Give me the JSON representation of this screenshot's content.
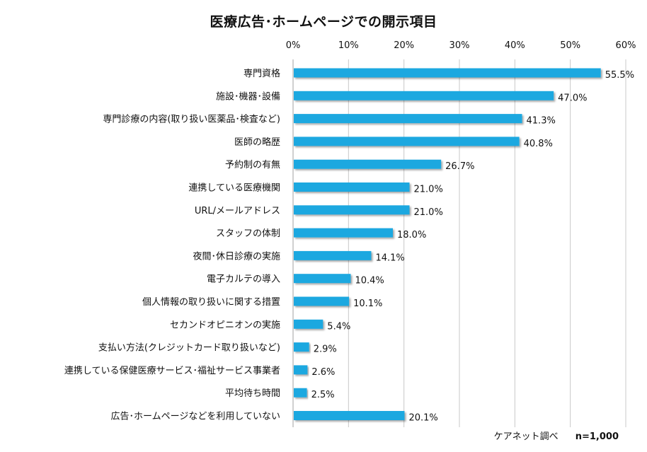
{
  "chart_data": {
    "type": "bar",
    "orientation": "horizontal",
    "title": "医療広告･ホームページでの開示項目",
    "categories": [
      "専門資格",
      "施設･機器･設備",
      "専門診療の内容(取り扱い医薬品･検査など)",
      "医師の略歴",
      "予約制の有無",
      "連携している医療機関",
      "URL/メールアドレス",
      "スタッフの体制",
      "夜間･休日診療の実施",
      "電子カルテの導入",
      "個人情報の取り扱いに関する措置",
      "セカンドオピニオンの実施",
      "支払い方法(クレジットカード取り扱いなど)",
      "連携している保健医療サービス･福祉サービス事業者",
      "平均待ち時間",
      "広告･ホームページなどを利用していない"
    ],
    "values": [
      55.5,
      47.0,
      41.3,
      40.8,
      26.7,
      21.0,
      21.0,
      18.0,
      14.1,
      10.4,
      10.1,
      5.4,
      2.9,
      2.6,
      2.5,
      20.1
    ],
    "value_labels": [
      "55.5%",
      "47.0%",
      "41.3%",
      "40.8%",
      "26.7%",
      "21.0%",
      "21.0%",
      "18.0%",
      "14.1%",
      "10.4%",
      "10.1%",
      "5.4%",
      "2.9%",
      "2.6%",
      "2.5%",
      "20.1%"
    ],
    "xlim": [
      0,
      60
    ],
    "x_ticks": [
      0,
      10,
      20,
      30,
      40,
      50,
      60
    ],
    "x_tick_labels": [
      "0%",
      "10%",
      "20%",
      "30%",
      "40%",
      "50%",
      "60%"
    ],
    "axis_position": "top",
    "grid": true,
    "bar_color": "#1ea8e0",
    "grid_color": "#c8c8c8"
  },
  "footer": {
    "source": "ケアネット調べ",
    "n": "n=1,000"
  }
}
